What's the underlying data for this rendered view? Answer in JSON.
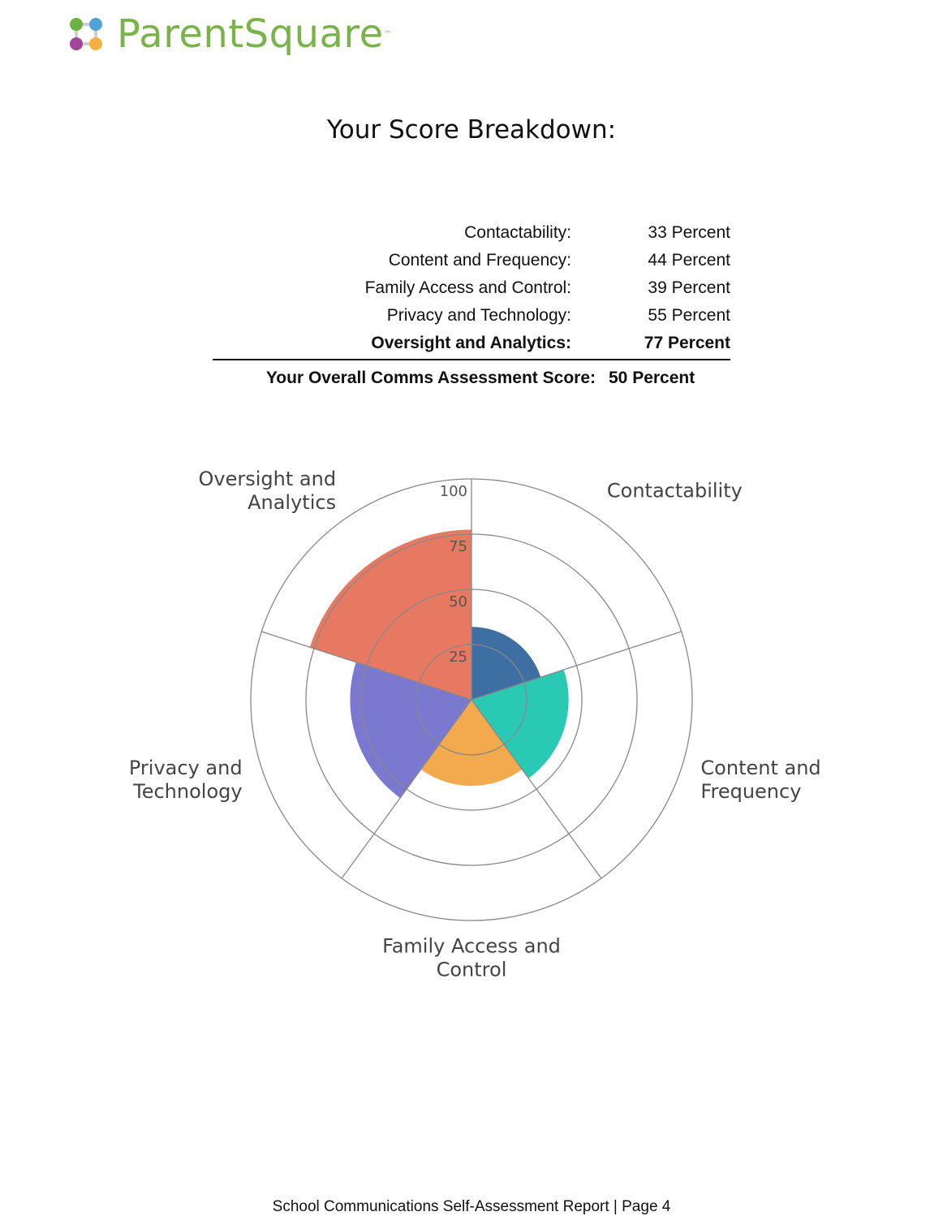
{
  "brand": {
    "name": "ParentSquare",
    "trademark": "™",
    "color": "#7ab34a"
  },
  "page_title": "Your Score Breakdown:",
  "scores": [
    {
      "label": "Contactability:",
      "value": "33 Percent"
    },
    {
      "label": "Content and Frequency:",
      "value": "44 Percent"
    },
    {
      "label": "Family Access and Control:",
      "value": "39 Percent"
    },
    {
      "label": "Privacy and Technology:",
      "value": "55 Percent"
    },
    {
      "label": "Oversight and Analytics:",
      "value": "77 Percent"
    }
  ],
  "overall": {
    "label": "Your Overall Comms Assessment Score:",
    "value": "50 Percent"
  },
  "chart_data": {
    "type": "polar-bar",
    "radial_range": [
      0,
      100
    ],
    "radial_ticks": [
      "25",
      "50",
      "75",
      "100"
    ],
    "categories": [
      {
        "label_lines": [
          "Contactability"
        ],
        "value": 33,
        "color": "#3d6fa3"
      },
      {
        "label_lines": [
          "Content and",
          "Frequency"
        ],
        "value": 44,
        "color": "#2ac9b4"
      },
      {
        "label_lines": [
          "Family Access and",
          "Control"
        ],
        "value": 39,
        "color": "#f2aa4c"
      },
      {
        "label_lines": [
          "Privacy and",
          "Technology"
        ],
        "value": 55,
        "color": "#7b78cf"
      },
      {
        "label_lines": [
          "Oversight and",
          "Analytics"
        ],
        "value": 77,
        "color": "#e77861"
      }
    ],
    "grid": true
  },
  "footer": "School Communications Self-Assessment Report | Page 4"
}
